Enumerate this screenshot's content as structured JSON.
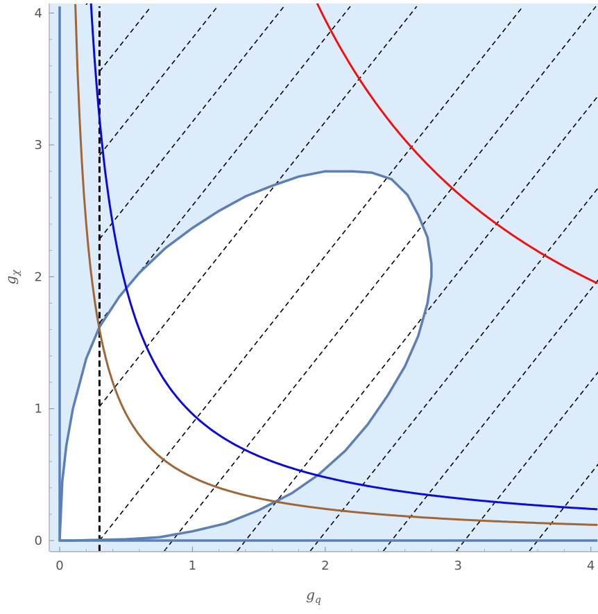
{
  "chart_data": {
    "type": "line",
    "title": "",
    "xlabel": {
      "base": "g",
      "sub": "q"
    },
    "ylabel": {
      "base": "g",
      "sub": "χ"
    },
    "xlim": [
      -0.08,
      4.05
    ],
    "ylim": [
      -0.08,
      4.05
    ],
    "x_ticks": [
      {
        "value": 0,
        "label": "0"
      },
      {
        "value": 1,
        "label": "1"
      },
      {
        "value": 2,
        "label": "2"
      },
      {
        "value": 3,
        "label": "3"
      },
      {
        "value": 4,
        "label": "4"
      }
    ],
    "y_ticks": [
      {
        "value": 0,
        "label": "0"
      },
      {
        "value": 1,
        "label": "1"
      },
      {
        "value": 2,
        "label": "2"
      },
      {
        "value": 3,
        "label": "3"
      },
      {
        "value": 4,
        "label": "4"
      }
    ],
    "colors": {
      "excluded_fill": "#dcecfb",
      "contour": "#5b7fb6",
      "blue_curve": "#0a0adf",
      "brown_curve": "#a06636",
      "red_curve": "#ee1111",
      "hatch": "#000000"
    },
    "hatch": {
      "slope": 1.27,
      "x_intercepts": [
        -3.0,
        -2.5,
        -2.0,
        -1.5,
        -1.0,
        -0.5,
        0.3,
        0.85,
        1.4,
        1.95,
        2.5,
        3.05,
        3.6
      ]
    },
    "vertical_line": {
      "x": 0.3
    },
    "contour_boundary": [
      [
        0.0,
        0.0
      ],
      [
        0.02,
        0.45
      ],
      [
        0.05,
        0.72
      ],
      [
        0.1,
        1.0
      ],
      [
        0.2,
        1.38
      ],
      [
        0.3,
        1.62
      ],
      [
        0.45,
        1.85
      ],
      [
        0.6,
        2.03
      ],
      [
        0.8,
        2.22
      ],
      [
        1.0,
        2.37
      ],
      [
        1.2,
        2.5
      ],
      [
        1.4,
        2.61
      ],
      [
        1.6,
        2.69
      ],
      [
        1.8,
        2.76
      ],
      [
        2.0,
        2.8
      ],
      [
        2.2,
        2.8
      ],
      [
        2.35,
        2.79
      ],
      [
        2.5,
        2.74
      ],
      [
        2.62,
        2.62
      ],
      [
        2.7,
        2.47
      ],
      [
        2.77,
        2.3
      ],
      [
        2.8,
        2.1
      ],
      [
        2.8,
        2.0
      ],
      [
        2.77,
        1.8
      ],
      [
        2.7,
        1.55
      ],
      [
        2.6,
        1.32
      ],
      [
        2.47,
        1.1
      ],
      [
        2.32,
        0.88
      ],
      [
        2.15,
        0.68
      ],
      [
        1.95,
        0.5
      ],
      [
        1.75,
        0.36
      ],
      [
        1.5,
        0.23
      ],
      [
        1.25,
        0.13
      ],
      [
        1.0,
        0.07
      ],
      [
        0.75,
        0.025
      ],
      [
        0.5,
        0.01
      ],
      [
        0.3,
        0.005
      ],
      [
        0.1,
        0.0
      ],
      [
        0.0,
        0.0
      ]
    ],
    "series": [
      {
        "id": "blue",
        "constant": 0.96,
        "x_from": 0.23,
        "x_to": 4.05
      },
      {
        "id": "brown",
        "constant": 0.48,
        "x_from": 0.118,
        "x_to": 4.05
      },
      {
        "id": "red",
        "constant": 7.9,
        "x_from": 1.93,
        "x_to": 4.05
      }
    ]
  }
}
